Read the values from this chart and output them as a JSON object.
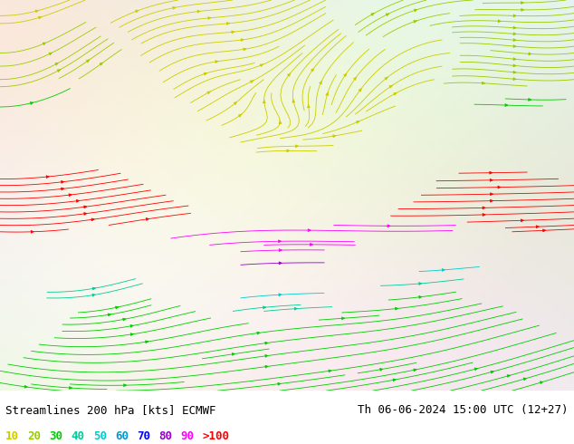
{
  "title_left": "Streamlines 200 hPa [kts] ECMWF",
  "title_right": "Th 06-06-2024 15:00 UTC (12+27)",
  "legend_labels": [
    "10",
    "20",
    "30",
    "40",
    "50",
    "60",
    "70",
    "80",
    "90",
    ">100"
  ],
  "legend_colors": [
    "#cccc00",
    "#99cc00",
    "#00cc00",
    "#00cc99",
    "#00cccc",
    "#0099cc",
    "#0000ff",
    "#9900cc",
    "#ff00ff",
    "#ff0000"
  ],
  "bg_color": "#ffffff",
  "streamline_colors_list": [
    "#cccc00",
    "#99cc00",
    "#00cc00",
    "#00cc99",
    "#00cccc",
    "#0099cc",
    "#0000ff",
    "#9900cc",
    "#ff00ff",
    "#ff0000"
  ],
  "fig_width": 6.34,
  "fig_height": 4.9,
  "dpi": 100,
  "map_bg": "#f0f0e8",
  "font_size_title": 9,
  "font_size_legend": 9
}
